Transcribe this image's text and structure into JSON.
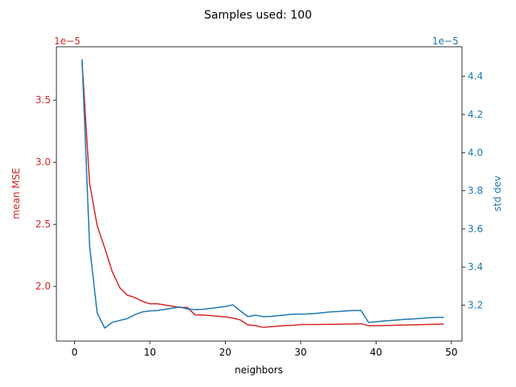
{
  "chart_data": {
    "type": "line",
    "title": "Samples used: 100",
    "xlabel": "neighbors",
    "xlim": [
      -2.4,
      51.4
    ],
    "xticks": [
      0,
      10,
      20,
      30,
      40,
      50
    ],
    "grid": false,
    "left_axis": {
      "label": "mean MSE",
      "color": "#d62728",
      "offset_text": "1e−5",
      "ylim": [
        1.56,
        3.93
      ],
      "ticks": [
        2.0,
        2.5,
        3.0,
        3.5
      ],
      "tick_labels": [
        "2.0",
        "2.5",
        "3.0",
        "3.5"
      ]
    },
    "right_axis": {
      "label": "std dev",
      "color": "#1f77b4",
      "offset_text": "1e−5",
      "ylim": [
        3.012,
        4.555
      ],
      "ticks": [
        3.2,
        3.4,
        3.6,
        3.8,
        4.0,
        4.2,
        4.4
      ],
      "tick_labels": [
        "3.2",
        "3.4",
        "3.6",
        "3.8",
        "4.0",
        "4.2",
        "4.4"
      ]
    },
    "x": [
      1,
      2,
      3,
      4,
      5,
      6,
      7,
      8,
      9,
      10,
      11,
      12,
      13,
      14,
      15,
      16,
      17,
      18,
      19,
      20,
      21,
      22,
      23,
      24,
      25,
      26,
      27,
      28,
      29,
      30,
      31,
      32,
      33,
      34,
      35,
      36,
      37,
      38,
      39,
      40,
      41,
      42,
      43,
      44,
      45,
      46,
      47,
      48,
      49
    ],
    "series": [
      {
        "name": "mean MSE",
        "axis": "left",
        "color": "#d62728",
        "values": [
          3.81,
          2.83,
          2.49,
          2.31,
          2.12,
          1.99,
          1.93,
          1.91,
          1.88,
          1.86,
          1.86,
          1.85,
          1.84,
          1.83,
          1.83,
          1.77,
          1.77,
          1.765,
          1.76,
          1.755,
          1.745,
          1.73,
          1.69,
          1.685,
          1.67,
          1.675,
          1.68,
          1.685,
          1.687,
          1.693,
          1.693,
          1.693,
          1.694,
          1.695,
          1.695,
          1.696,
          1.697,
          1.7,
          1.683,
          1.684,
          1.685,
          1.686,
          1.688,
          1.689,
          1.691,
          1.692,
          1.694,
          1.695,
          1.697
        ]
      },
      {
        "name": "std dev",
        "axis": "right",
        "color": "#1f77b4",
        "values": [
          4.49,
          3.51,
          3.16,
          3.08,
          3.11,
          3.12,
          3.13,
          3.15,
          3.165,
          3.17,
          3.172,
          3.178,
          3.185,
          3.19,
          3.18,
          3.177,
          3.178,
          3.183,
          3.188,
          3.193,
          3.202,
          3.17,
          3.14,
          3.148,
          3.14,
          3.141,
          3.145,
          3.149,
          3.153,
          3.153,
          3.154,
          3.157,
          3.161,
          3.165,
          3.167,
          3.17,
          3.172,
          3.172,
          3.11,
          3.113,
          3.117,
          3.12,
          3.123,
          3.126,
          3.128,
          3.131,
          3.134,
          3.136,
          3.136
        ]
      }
    ]
  }
}
